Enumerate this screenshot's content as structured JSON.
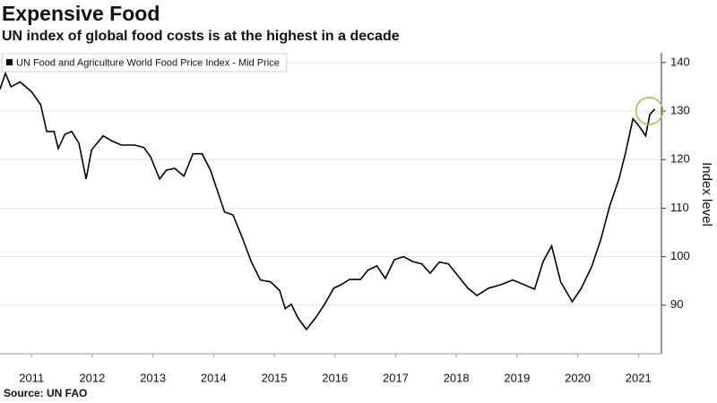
{
  "chart_data": {
    "type": "line",
    "title": "Expensive Food",
    "subtitle": "UN index of global food costs is at the highest in a decade",
    "source": "Source: UN FAO",
    "y_label": "Index level",
    "legend_position": "top-left",
    "grid": true,
    "xlim": [
      2010.98,
      2021.88
    ],
    "ylim": [
      80,
      142
    ],
    "yticks": [
      90,
      100,
      110,
      120,
      130,
      140
    ],
    "xticks": [
      {
        "value": 2011.5,
        "label": "2011"
      },
      {
        "value": 2012.5,
        "label": "2012"
      },
      {
        "value": 2013.5,
        "label": "2013"
      },
      {
        "value": 2014.5,
        "label": "2014"
      },
      {
        "value": 2015.5,
        "label": "2015"
      },
      {
        "value": 2016.5,
        "label": "2016"
      },
      {
        "value": 2017.5,
        "label": "2017"
      },
      {
        "value": 2018.5,
        "label": "2018"
      },
      {
        "value": 2019.5,
        "label": "2019"
      },
      {
        "value": 2020.5,
        "label": "2020"
      },
      {
        "value": 2021.5,
        "label": "2021"
      }
    ],
    "x": [
      2010.98,
      2011.07,
      2011.16,
      2011.31,
      2011.5,
      2011.65,
      2011.75,
      2011.87,
      2011.94,
      2012.05,
      2012.16,
      2012.28,
      2012.4,
      2012.49,
      2012.68,
      2012.83,
      2012.98,
      2013.2,
      2013.35,
      2013.46,
      2013.61,
      2013.72,
      2013.86,
      2014.01,
      2014.16,
      2014.31,
      2014.45,
      2014.68,
      2014.82,
      2014.97,
      2015.12,
      2015.27,
      2015.44,
      2015.59,
      2015.68,
      2015.78,
      2015.89,
      2016.03,
      2016.18,
      2016.33,
      2016.48,
      2016.6,
      2016.74,
      2016.92,
      2017.04,
      2017.19,
      2017.33,
      2017.48,
      2017.63,
      2017.78,
      2017.93,
      2018.07,
      2018.22,
      2018.37,
      2018.55,
      2018.69,
      2018.84,
      2019.03,
      2019.23,
      2019.43,
      2019.62,
      2019.79,
      2019.93,
      2020.07,
      2020.22,
      2020.41,
      2020.56,
      2020.73,
      2020.88,
      2021.03,
      2021.18,
      2021.29,
      2021.41,
      2021.5,
      2021.62,
      2021.69,
      2021.77
    ],
    "series": [
      {
        "name": "UN Food and Agriculture World Food Price Index - Mid Price",
        "color": "#000000",
        "values": [
          134.5,
          137.8,
          135,
          136,
          134,
          131.3,
          125.8,
          125.8,
          122.3,
          125.2,
          125.8,
          123.4,
          116,
          122,
          124.9,
          123.8,
          123,
          123,
          122.5,
          120.6,
          116,
          117.8,
          118.2,
          116.6,
          121.2,
          121.2,
          117.8,
          109.2,
          108.6,
          104,
          99,
          95.2,
          94.8,
          93,
          89.3,
          90.2,
          87.4,
          85,
          87.4,
          90.2,
          93.5,
          94.2,
          95.3,
          95.3,
          97.2,
          98.1,
          95.5,
          99.4,
          100,
          99,
          98.5,
          96.6,
          98.9,
          98.5,
          95.7,
          93.5,
          92,
          93.5,
          94.2,
          95.2,
          94.2,
          93.3,
          99,
          102.2,
          94.8,
          90.7,
          93.5,
          97.9,
          103.5,
          110.5,
          116,
          121.5,
          128.4,
          127.1,
          124.9,
          129.3,
          130.4
        ]
      }
    ]
  }
}
